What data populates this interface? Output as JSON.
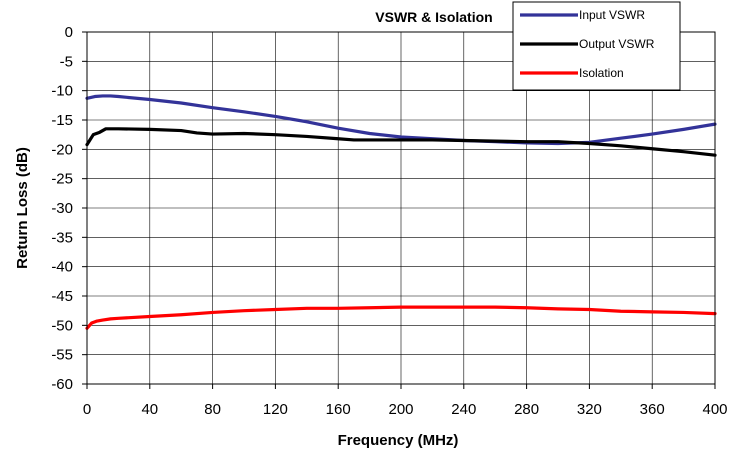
{
  "chart_data": {
    "type": "line",
    "title": "VSWR & Isolation",
    "xlabel": "Frequency (MHz)",
    "ylabel": "Return Loss (dB)",
    "xlim": [
      0,
      400
    ],
    "ylim": [
      -60,
      0
    ],
    "x_ticks": [
      "0",
      "40",
      "80",
      "120",
      "160",
      "200",
      "240",
      "280",
      "320",
      "360",
      "400"
    ],
    "y_ticks": [
      "0",
      "-5",
      "-10",
      "-15",
      "-20",
      "-25",
      "-30",
      "-35",
      "-40",
      "-45",
      "-50",
      "-55",
      "-60"
    ],
    "grid": true,
    "legend_position": "top-right",
    "series": [
      {
        "name": "Input VSWR",
        "color": "#333399",
        "points": [
          [
            0,
            -11.3
          ],
          [
            5,
            -11.0
          ],
          [
            10,
            -10.9
          ],
          [
            15,
            -10.9
          ],
          [
            20,
            -11.0
          ],
          [
            40,
            -11.5
          ],
          [
            60,
            -12.1
          ],
          [
            80,
            -12.9
          ],
          [
            100,
            -13.6
          ],
          [
            120,
            -14.4
          ],
          [
            140,
            -15.3
          ],
          [
            160,
            -16.4
          ],
          [
            180,
            -17.3
          ],
          [
            200,
            -17.9
          ],
          [
            220,
            -18.2
          ],
          [
            240,
            -18.5
          ],
          [
            260,
            -18.7
          ],
          [
            280,
            -18.9
          ],
          [
            300,
            -19.0
          ],
          [
            320,
            -18.8
          ],
          [
            340,
            -18.1
          ],
          [
            360,
            -17.4
          ],
          [
            380,
            -16.6
          ],
          [
            400,
            -15.7
          ]
        ]
      },
      {
        "name": "Output VSWR",
        "color": "#000000",
        "points": [
          [
            0,
            -19.2
          ],
          [
            4,
            -17.5
          ],
          [
            8,
            -17.1
          ],
          [
            12,
            -16.5
          ],
          [
            20,
            -16.5
          ],
          [
            40,
            -16.6
          ],
          [
            60,
            -16.8
          ],
          [
            70,
            -17.2
          ],
          [
            80,
            -17.4
          ],
          [
            100,
            -17.3
          ],
          [
            120,
            -17.5
          ],
          [
            140,
            -17.8
          ],
          [
            160,
            -18.2
          ],
          [
            170,
            -18.4
          ],
          [
            180,
            -18.4
          ],
          [
            200,
            -18.4
          ],
          [
            220,
            -18.4
          ],
          [
            240,
            -18.5
          ],
          [
            260,
            -18.6
          ],
          [
            280,
            -18.7
          ],
          [
            300,
            -18.7
          ],
          [
            320,
            -19.0
          ],
          [
            340,
            -19.4
          ],
          [
            360,
            -19.9
          ],
          [
            380,
            -20.4
          ],
          [
            400,
            -21.0
          ]
        ]
      },
      {
        "name": "Isolation",
        "color": "#ff0000",
        "points": [
          [
            0,
            -50.5
          ],
          [
            3,
            -49.6
          ],
          [
            6,
            -49.3
          ],
          [
            10,
            -49.1
          ],
          [
            15,
            -48.9
          ],
          [
            20,
            -48.8
          ],
          [
            40,
            -48.5
          ],
          [
            60,
            -48.2
          ],
          [
            80,
            -47.8
          ],
          [
            100,
            -47.5
          ],
          [
            120,
            -47.3
          ],
          [
            140,
            -47.1
          ],
          [
            160,
            -47.1
          ],
          [
            180,
            -47.0
          ],
          [
            200,
            -46.9
          ],
          [
            220,
            -46.9
          ],
          [
            240,
            -46.9
          ],
          [
            260,
            -46.9
          ],
          [
            280,
            -47.0
          ],
          [
            300,
            -47.2
          ],
          [
            320,
            -47.3
          ],
          [
            340,
            -47.6
          ],
          [
            360,
            -47.7
          ],
          [
            380,
            -47.8
          ],
          [
            400,
            -48.0
          ]
        ]
      }
    ]
  }
}
